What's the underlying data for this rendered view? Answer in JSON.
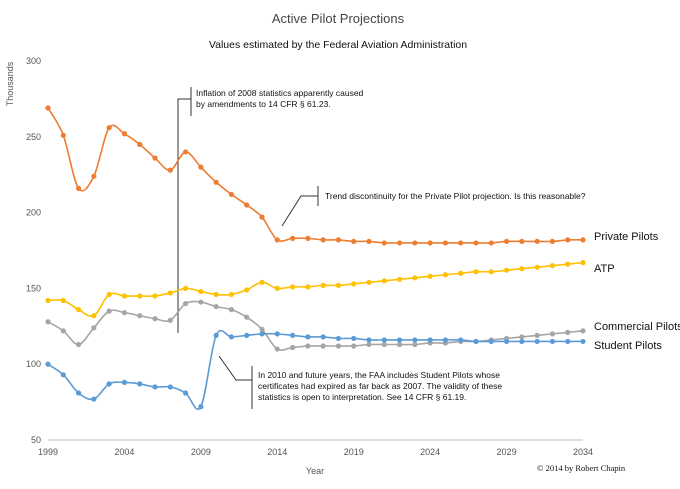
{
  "chart_data": {
    "type": "line",
    "title": "Active Pilot Projections",
    "subtitle": "Values estimated by the Federal Aviation Administration",
    "xlabel": "Year",
    "ylabel": "Thousands",
    "xlim": [
      1999,
      2034
    ],
    "ylim": [
      50,
      300
    ],
    "xticks": [
      1999,
      2004,
      2009,
      2014,
      2019,
      2024,
      2029,
      2034
    ],
    "yticks": [
      50,
      100,
      150,
      200,
      250,
      300
    ],
    "grid": false,
    "x": [
      1999,
      2000,
      2001,
      2002,
      2003,
      2004,
      2005,
      2006,
      2007,
      2008,
      2009,
      2010,
      2011,
      2012,
      2013,
      2014,
      2015,
      2016,
      2017,
      2018,
      2019,
      2020,
      2021,
      2022,
      2023,
      2024,
      2025,
      2026,
      2027,
      2028,
      2029,
      2030,
      2031,
      2032,
      2033,
      2034
    ],
    "series": [
      {
        "name": "Private Pilots",
        "color": "#ED7D31",
        "values": [
          269,
          251,
          216,
          224,
          256,
          252,
          245,
          236,
          228,
          240,
          230,
          220,
          212,
          205,
          197,
          182,
          183,
          183,
          182,
          182,
          181,
          181,
          180,
          180,
          180,
          180,
          180,
          180,
          180,
          180,
          181,
          181,
          181,
          181,
          182,
          182
        ]
      },
      {
        "name": "ATP",
        "color": "#FFC000",
        "values": [
          142,
          142,
          136,
          132,
          146,
          145,
          145,
          145,
          147,
          150,
          148,
          146,
          146,
          149,
          154,
          150,
          151,
          151,
          152,
          152,
          153,
          154,
          155,
          156,
          157,
          158,
          159,
          160,
          161,
          161,
          162,
          163,
          164,
          165,
          166,
          167
        ]
      },
      {
        "name": "Commercial Pilots",
        "color": "#A5A5A5",
        "values": [
          128,
          122,
          113,
          124,
          135,
          134,
          132,
          130,
          129,
          140,
          141,
          138,
          136,
          131,
          123,
          110,
          111,
          112,
          112,
          112,
          112,
          113,
          113,
          113,
          113,
          114,
          114,
          115,
          115,
          116,
          117,
          118,
          119,
          120,
          121,
          122
        ]
      },
      {
        "name": "Student Pilots",
        "color": "#5B9BD5",
        "values": [
          100,
          93,
          81,
          77,
          87,
          88,
          87,
          85,
          85,
          81,
          72,
          119,
          118,
          119,
          120,
          120,
          119,
          118,
          118,
          117,
          117,
          116,
          116,
          116,
          116,
          116,
          116,
          116,
          115,
          115,
          115,
          115,
          115,
          115,
          115,
          115
        ]
      }
    ],
    "annotations": [
      {
        "lines": [
          "Inflation of 2008 statistics apparently caused",
          "by amendments to 14 CFR § 61.23."
        ]
      },
      {
        "lines": [
          "Trend discontinuity for the Private Pilot projection.  Is this reasonable?"
        ]
      },
      {
        "lines": [
          "In 2010 and future years, the FAA includes Student Pilots whose",
          "certificates had expired as far back as 2007.  The validity of these",
          "statistics is open to interpretation.  See 14 CFR § 61.19."
        ]
      }
    ],
    "credit": "© 2014 by Robert Chapin"
  }
}
